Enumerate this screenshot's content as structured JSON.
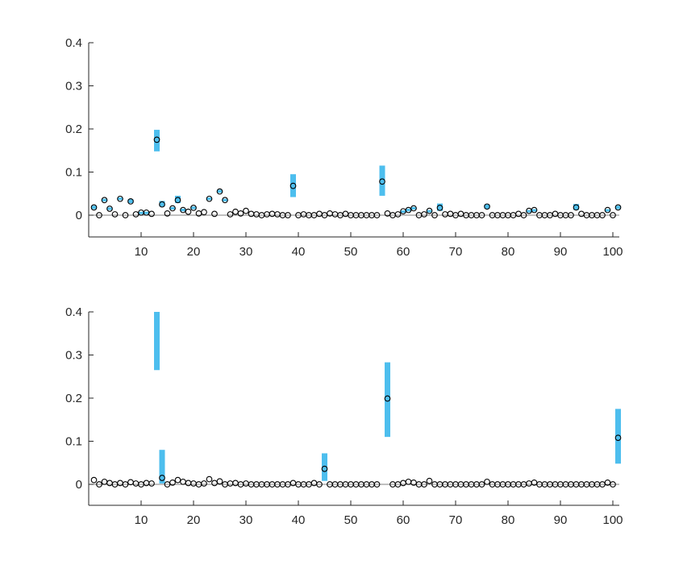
{
  "chart_data": [
    {
      "type": "scatter",
      "title": "",
      "xlabel": "",
      "ylabel": "",
      "xlim": [
        0,
        101
      ],
      "ylim": [
        -0.05,
        0.4
      ],
      "xticks": [
        10,
        20,
        30,
        40,
        50,
        60,
        70,
        80,
        90,
        100
      ],
      "xtick_labels": [
        "10",
        "20",
        "30",
        "40",
        "50",
        "60",
        "70",
        "80",
        "90",
        "100"
      ],
      "yticks": [
        0,
        0.1,
        0.2,
        0.3,
        0.4
      ],
      "ytick_labels": [
        "0",
        "0.1",
        "0.2",
        "0.3",
        "0.4"
      ],
      "grid": false,
      "legend": "none",
      "colors": {
        "bar": "#4DBEEE",
        "marker_edge": "#000000",
        "zero_line": "#808080"
      },
      "markers": [
        [
          1,
          0.018
        ],
        [
          2,
          0.0
        ],
        [
          3,
          0.035
        ],
        [
          4,
          0.015
        ],
        [
          5,
          0.002
        ],
        [
          6,
          0.038
        ],
        [
          7,
          0.0
        ],
        [
          8,
          0.032
        ],
        [
          9,
          0.002
        ],
        [
          10,
          0.006
        ],
        [
          11,
          0.006
        ],
        [
          12,
          0.003
        ],
        [
          13,
          0.175
        ],
        [
          14,
          0.025
        ],
        [
          15,
          0.004
        ],
        [
          16,
          0.016
        ],
        [
          17,
          0.035
        ],
        [
          18,
          0.012
        ],
        [
          19,
          0.008
        ],
        [
          20,
          0.017
        ],
        [
          21,
          0.004
        ],
        [
          22,
          0.007
        ],
        [
          23,
          0.038
        ],
        [
          24,
          0.003
        ],
        [
          25,
          0.055
        ],
        [
          26,
          0.035
        ],
        [
          27,
          0.002
        ],
        [
          28,
          0.008
        ],
        [
          29,
          0.004
        ],
        [
          30,
          0.01
        ],
        [
          31,
          0.003
        ],
        [
          32,
          0.002
        ],
        [
          33,
          0.0
        ],
        [
          34,
          0.002
        ],
        [
          35,
          0.003
        ],
        [
          36,
          0.002
        ],
        [
          37,
          0.0
        ],
        [
          38,
          0.0
        ],
        [
          39,
          0.068
        ],
        [
          40,
          0.0
        ],
        [
          41,
          0.002
        ],
        [
          42,
          0.0
        ],
        [
          43,
          0.0
        ],
        [
          44,
          0.003
        ],
        [
          45,
          0.0
        ],
        [
          46,
          0.004
        ],
        [
          47,
          0.002
        ],
        [
          48,
          0.0
        ],
        [
          49,
          0.003
        ],
        [
          50,
          0.0
        ],
        [
          51,
          0.0
        ],
        [
          52,
          0.0
        ],
        [
          53,
          0.0
        ],
        [
          54,
          0.0
        ],
        [
          55,
          0.0
        ],
        [
          56,
          0.078
        ],
        [
          57,
          0.004
        ],
        [
          58,
          0.0
        ],
        [
          59,
          0.002
        ],
        [
          60,
          0.009
        ],
        [
          61,
          0.012
        ],
        [
          62,
          0.016
        ],
        [
          63,
          0.0
        ],
        [
          64,
          0.002
        ],
        [
          65,
          0.01
        ],
        [
          66,
          0.0
        ],
        [
          67,
          0.017
        ],
        [
          68,
          0.002
        ],
        [
          69,
          0.003
        ],
        [
          70,
          0.0
        ],
        [
          71,
          0.003
        ],
        [
          72,
          0.0
        ],
        [
          73,
          0.0
        ],
        [
          74,
          0.0
        ],
        [
          75,
          0.0
        ],
        [
          76,
          0.02
        ],
        [
          77,
          0.0
        ],
        [
          78,
          0.0
        ],
        [
          79,
          0.0
        ],
        [
          80,
          0.0
        ],
        [
          81,
          0.0
        ],
        [
          82,
          0.003
        ],
        [
          83,
          0.0
        ],
        [
          84,
          0.01
        ],
        [
          85,
          0.012
        ],
        [
          86,
          0.0
        ],
        [
          87,
          0.0
        ],
        [
          88,
          0.0
        ],
        [
          89,
          0.003
        ],
        [
          90,
          0.0
        ],
        [
          91,
          0.0
        ],
        [
          92,
          0.0
        ],
        [
          93,
          0.018
        ],
        [
          94,
          0.003
        ],
        [
          95,
          0.0
        ],
        [
          96,
          0.0
        ],
        [
          97,
          0.0
        ],
        [
          98,
          0.0
        ],
        [
          99,
          0.012
        ],
        [
          100,
          0.0
        ],
        [
          101,
          0.018
        ]
      ],
      "intervals": [
        [
          1,
          0.014,
          0.022
        ],
        [
          3,
          0.032,
          0.038
        ],
        [
          4,
          0.012,
          0.018
        ],
        [
          6,
          0.035,
          0.041
        ],
        [
          8,
          0.028,
          0.037
        ],
        [
          10,
          0.004,
          0.008
        ],
        [
          11,
          0.004,
          0.008
        ],
        [
          13,
          0.148,
          0.198
        ],
        [
          14,
          0.02,
          0.033
        ],
        [
          16,
          0.013,
          0.019
        ],
        [
          17,
          0.028,
          0.045
        ],
        [
          18,
          0.009,
          0.015
        ],
        [
          20,
          0.014,
          0.02
        ],
        [
          23,
          0.035,
          0.041
        ],
        [
          25,
          0.052,
          0.059
        ],
        [
          26,
          0.032,
          0.038
        ],
        [
          39,
          0.042,
          0.095
        ],
        [
          56,
          0.045,
          0.115
        ],
        [
          60,
          0.007,
          0.011
        ],
        [
          61,
          0.009,
          0.015
        ],
        [
          62,
          0.013,
          0.019
        ],
        [
          65,
          0.008,
          0.012
        ],
        [
          67,
          0.01,
          0.027
        ],
        [
          76,
          0.015,
          0.025
        ],
        [
          84,
          0.008,
          0.012
        ],
        [
          85,
          0.01,
          0.014
        ],
        [
          93,
          0.012,
          0.026
        ],
        [
          99,
          0.01,
          0.014
        ],
        [
          101,
          0.014,
          0.022
        ]
      ]
    },
    {
      "type": "scatter",
      "title": "",
      "xlabel": "",
      "ylabel": "",
      "xlim": [
        0,
        101
      ],
      "ylim": [
        -0.05,
        0.4
      ],
      "xticks": [
        10,
        20,
        30,
        40,
        50,
        60,
        70,
        80,
        90,
        100
      ],
      "xtick_labels": [
        "10",
        "20",
        "30",
        "40",
        "50",
        "60",
        "70",
        "80",
        "90",
        "100"
      ],
      "yticks": [
        0,
        0.1,
        0.2,
        0.3,
        0.4
      ],
      "ytick_labels": [
        "0",
        "0.1",
        "0.2",
        "0.3",
        "0.4"
      ],
      "grid": false,
      "legend": "none",
      "colors": {
        "bar": "#4DBEEE",
        "marker_edge": "#000000",
        "zero_line": "#808080"
      },
      "markers": [
        [
          1,
          0.01
        ],
        [
          2,
          0.0
        ],
        [
          3,
          0.006
        ],
        [
          4,
          0.003
        ],
        [
          5,
          0.0
        ],
        [
          6,
          0.003
        ],
        [
          7,
          0.0
        ],
        [
          8,
          0.005
        ],
        [
          9,
          0.002
        ],
        [
          10,
          0.0
        ],
        [
          11,
          0.003
        ],
        [
          12,
          0.002
        ],
        [
          14,
          0.015
        ],
        [
          15,
          0.0
        ],
        [
          16,
          0.004
        ],
        [
          17,
          0.01
        ],
        [
          18,
          0.006
        ],
        [
          19,
          0.003
        ],
        [
          20,
          0.002
        ],
        [
          21,
          0.0
        ],
        [
          22,
          0.002
        ],
        [
          23,
          0.012
        ],
        [
          24,
          0.003
        ],
        [
          25,
          0.007
        ],
        [
          26,
          0.0
        ],
        [
          27,
          0.002
        ],
        [
          28,
          0.003
        ],
        [
          29,
          0.0
        ],
        [
          30,
          0.002
        ],
        [
          31,
          0.0
        ],
        [
          32,
          0.0
        ],
        [
          33,
          0.0
        ],
        [
          34,
          0.0
        ],
        [
          35,
          0.0
        ],
        [
          36,
          0.0
        ],
        [
          37,
          0.0
        ],
        [
          38,
          0.0
        ],
        [
          39,
          0.003
        ],
        [
          40,
          0.0
        ],
        [
          41,
          0.0
        ],
        [
          42,
          0.0
        ],
        [
          43,
          0.003
        ],
        [
          44,
          0.0
        ],
        [
          45,
          0.036
        ],
        [
          46,
          0.0
        ],
        [
          47,
          0.0
        ],
        [
          48,
          0.0
        ],
        [
          49,
          0.0
        ],
        [
          50,
          0.0
        ],
        [
          51,
          0.0
        ],
        [
          52,
          0.0
        ],
        [
          53,
          0.0
        ],
        [
          54,
          0.0
        ],
        [
          55,
          0.0
        ],
        [
          57,
          0.199
        ],
        [
          58,
          0.0
        ],
        [
          59,
          0.0
        ],
        [
          60,
          0.003
        ],
        [
          61,
          0.006
        ],
        [
          62,
          0.004
        ],
        [
          63,
          0.0
        ],
        [
          64,
          0.0
        ],
        [
          65,
          0.008
        ],
        [
          66,
          0.0
        ],
        [
          67,
          0.0
        ],
        [
          68,
          0.0
        ],
        [
          69,
          0.0
        ],
        [
          70,
          0.0
        ],
        [
          71,
          0.0
        ],
        [
          72,
          0.0
        ],
        [
          73,
          0.0
        ],
        [
          74,
          0.0
        ],
        [
          75,
          0.0
        ],
        [
          76,
          0.006
        ],
        [
          77,
          0.0
        ],
        [
          78,
          0.0
        ],
        [
          79,
          0.0
        ],
        [
          80,
          0.0
        ],
        [
          81,
          0.0
        ],
        [
          82,
          0.0
        ],
        [
          83,
          0.0
        ],
        [
          84,
          0.002
        ],
        [
          85,
          0.004
        ],
        [
          86,
          0.0
        ],
        [
          87,
          0.0
        ],
        [
          88,
          0.0
        ],
        [
          89,
          0.0
        ],
        [
          90,
          0.0
        ],
        [
          91,
          0.0
        ],
        [
          92,
          0.0
        ],
        [
          93,
          0.0
        ],
        [
          94,
          0.0
        ],
        [
          95,
          0.0
        ],
        [
          96,
          0.0
        ],
        [
          97,
          0.0
        ],
        [
          98,
          0.0
        ],
        [
          99,
          0.004
        ],
        [
          100,
          0.0
        ],
        [
          101,
          0.108
        ]
      ],
      "intervals": [
        [
          13,
          0.265,
          0.4
        ],
        [
          14,
          0.002,
          0.08
        ],
        [
          45,
          0.008,
          0.072
        ],
        [
          57,
          0.11,
          0.283
        ],
        [
          101,
          0.048,
          0.175
        ]
      ]
    }
  ]
}
